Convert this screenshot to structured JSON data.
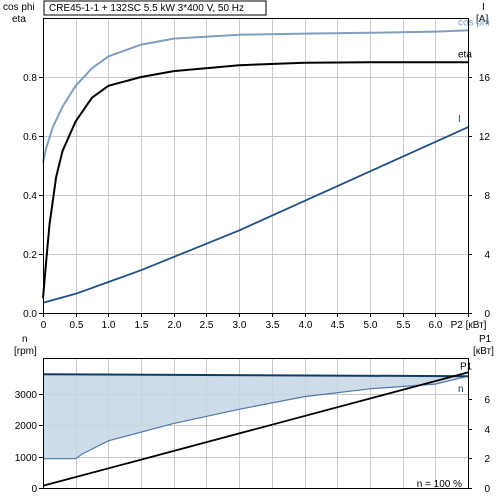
{
  "title": "CRE45-1-1 + 132SC  5.5 kW  3*400 V, 50 Hz",
  "colors": {
    "cos_phi": "#7f9fc0",
    "eta": "#000000",
    "current": "#1f4f85",
    "power_line": "#000000",
    "speed_line": "#0d3d66",
    "area_fill": "#c6d5e5",
    "area_edge": "#4e79a7",
    "grid": "#c8c8c8"
  },
  "chart_data": [
    {
      "type": "line",
      "title": "CRE45-1-1 + 132SC  5.5 kW  3*400 V, 50 Hz",
      "x_tick_labels": [
        "0",
        "0.5",
        "1.0",
        "1.5",
        "2.0",
        "2.5",
        "3.0",
        "3.5",
        "4.0",
        "4.5",
        "5.0",
        "5.5",
        "6.0",
        "P2 [кВт]"
      ],
      "xlim": [
        0,
        6.5
      ],
      "left_axis": {
        "label_line1": "cos phi",
        "label_line2": "eta",
        "ylim": [
          0,
          1.0
        ],
        "tick_labels": [
          "0.0",
          "0.2",
          "0.4",
          "0.6",
          "0.8"
        ]
      },
      "right_axis": {
        "label_line1": "I",
        "label_line2": "[A]",
        "ylim": [
          0,
          20
        ],
        "tick_labels": [
          "0",
          "4",
          "8",
          "12",
          "16"
        ]
      },
      "grid": true,
      "series": [
        {
          "name": "cos phi",
          "axis": "left",
          "x": [
            0.0,
            0.05,
            0.15,
            0.3,
            0.5,
            0.75,
            1.0,
            1.5,
            2.0,
            3.0,
            4.0,
            5.0,
            6.0,
            6.5
          ],
          "y": [
            0.51,
            0.56,
            0.63,
            0.7,
            0.77,
            0.83,
            0.87,
            0.91,
            0.93,
            0.943,
            0.947,
            0.95,
            0.954,
            0.958
          ]
        },
        {
          "name": "eta",
          "axis": "left",
          "x": [
            0.0,
            0.05,
            0.1,
            0.2,
            0.3,
            0.5,
            0.75,
            1.0,
            1.5,
            2.0,
            3.0,
            4.0,
            5.0,
            6.0,
            6.5
          ],
          "y": [
            0.05,
            0.18,
            0.3,
            0.46,
            0.55,
            0.65,
            0.73,
            0.77,
            0.8,
            0.82,
            0.84,
            0.848,
            0.85,
            0.85,
            0.85
          ]
        },
        {
          "name": "I",
          "axis": "right",
          "x": [
            0.0,
            0.5,
            1.0,
            1.5,
            2.0,
            2.5,
            3.0,
            3.5,
            4.0,
            4.5,
            5.0,
            5.5,
            6.0,
            6.5
          ],
          "y": [
            0.7,
            1.3,
            2.1,
            2.9,
            3.8,
            4.7,
            5.6,
            6.6,
            7.6,
            8.6,
            9.6,
            10.6,
            11.6,
            12.6
          ]
        }
      ]
    },
    {
      "type": "area",
      "xlim": [
        0,
        6.5
      ],
      "left_axis": {
        "label_line1": "n",
        "label_line2": "[rpm]",
        "ylim": [
          0,
          4000
        ],
        "tick_labels": [
          "0",
          "1000",
          "2000",
          "3000"
        ]
      },
      "right_axis": {
        "label_line1": "P1",
        "label_line2": "[кВт]",
        "ylim": [
          0,
          8.5
        ],
        "tick_labels": [
          "0",
          "2",
          "4",
          "6"
        ]
      },
      "grid": true,
      "footnote": "n = 100 %",
      "series": [
        {
          "name": "P1",
          "axis": "right",
          "x": [
            0.0,
            6.5
          ],
          "y": [
            0.15,
            7.8
          ]
        },
        {
          "name": "n",
          "axis": "left",
          "role": "upper",
          "x": [
            0.0,
            6.5
          ],
          "y": [
            3610,
            3550
          ]
        },
        {
          "role": "lower",
          "axis": "left",
          "x": [
            0.0,
            0.5,
            0.6,
            1.0,
            2.0,
            3.0,
            4.0,
            5.0,
            6.0,
            6.5
          ],
          "y": [
            930,
            930,
            1080,
            1500,
            2050,
            2500,
            2900,
            3150,
            3300,
            3550
          ]
        }
      ]
    }
  ]
}
